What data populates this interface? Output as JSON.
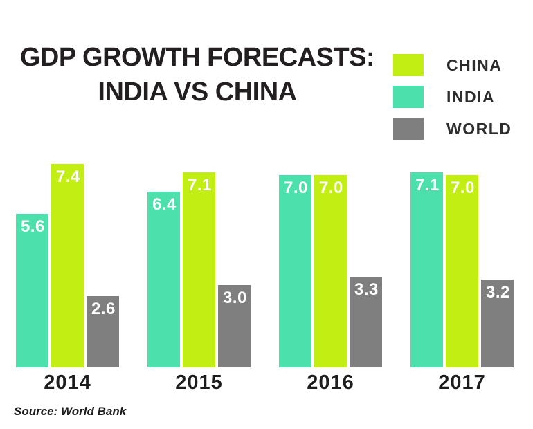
{
  "title": {
    "line1": "GDP GROWTH FORECASTS:",
    "line2": "INDIA VS CHINA"
  },
  "legend": {
    "items": [
      {
        "label": "CHINA",
        "color": "#c2ee13"
      },
      {
        "label": "INDIA",
        "color": "#4ce0ac"
      },
      {
        "label": "WORLD",
        "color": "#7f7f7f"
      }
    ]
  },
  "source": "Source: World Bank",
  "colors": {
    "china": "#c2ee13",
    "india": "#4ce0ac",
    "world": "#7f7f7f",
    "title_text": "#231f20",
    "value_label_text": "#ffffff",
    "background": "#ffffff"
  },
  "chart_data": {
    "type": "bar",
    "title": "GDP GROWTH FORECASTS: INDIA VS CHINA",
    "categories": [
      "2014",
      "2015",
      "2016",
      "2017"
    ],
    "series": [
      {
        "name": "INDIA",
        "color": "#4ce0ac",
        "values": [
          5.6,
          6.4,
          7.0,
          7.1
        ]
      },
      {
        "name": "CHINA",
        "color": "#c2ee13",
        "values": [
          7.4,
          7.1,
          7.0,
          7.0
        ]
      },
      {
        "name": "WORLD",
        "color": "#7f7f7f",
        "values": [
          2.6,
          3.0,
          3.3,
          3.2
        ]
      }
    ],
    "bar_order_left_to_right": [
      "INDIA",
      "CHINA",
      "WORLD"
    ],
    "legend_order_top_to_bottom": [
      "CHINA",
      "INDIA",
      "WORLD"
    ],
    "value_labels": true,
    "value_label_format": "0.0",
    "ylim": [
      0,
      7.4
    ],
    "grid": false,
    "axes_shown": false,
    "legend_position": "top-right",
    "source_note": "Source: World Bank"
  }
}
